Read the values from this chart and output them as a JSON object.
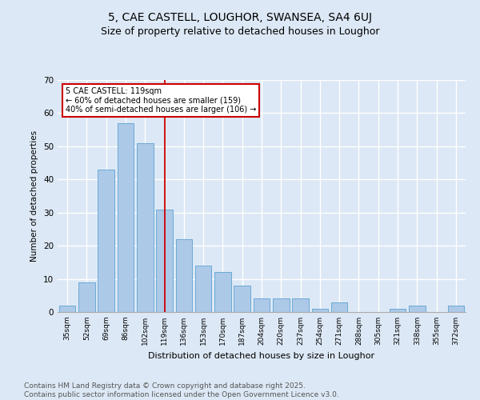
{
  "title1": "5, CAE CASTELL, LOUGHOR, SWANSEA, SA4 6UJ",
  "title2": "Size of property relative to detached houses in Loughor",
  "xlabel": "Distribution of detached houses by size in Loughor",
  "ylabel": "Number of detached properties",
  "categories": [
    "35sqm",
    "52sqm",
    "69sqm",
    "86sqm",
    "102sqm",
    "119sqm",
    "136sqm",
    "153sqm",
    "170sqm",
    "187sqm",
    "204sqm",
    "220sqm",
    "237sqm",
    "254sqm",
    "271sqm",
    "288sqm",
    "305sqm",
    "321sqm",
    "338sqm",
    "355sqm",
    "372sqm"
  ],
  "values": [
    2,
    9,
    43,
    57,
    51,
    31,
    22,
    14,
    12,
    8,
    4,
    4,
    4,
    1,
    3,
    0,
    0,
    1,
    2,
    0,
    2
  ],
  "bar_color": "#adc9e8",
  "bar_edge_color": "#6aaad4",
  "vline_x_index": 5,
  "vline_color": "#cc0000",
  "annotation_text": "5 CAE CASTELL: 119sqm\n← 60% of detached houses are smaller (159)\n40% of semi-detached houses are larger (106) →",
  "annotation_box_color": "#ffffff",
  "annotation_box_edge": "#cc0000",
  "ylim": [
    0,
    70
  ],
  "yticks": [
    0,
    10,
    20,
    30,
    40,
    50,
    60,
    70
  ],
  "footer": "Contains HM Land Registry data © Crown copyright and database right 2025.\nContains public sector information licensed under the Open Government Licence v3.0.",
  "bg_color": "#dce8f5",
  "plot_bg_color": "#dce8f5",
  "grid_color": "#ffffff",
  "title_fontsize": 10,
  "subtitle_fontsize": 9,
  "footer_fontsize": 6.5
}
